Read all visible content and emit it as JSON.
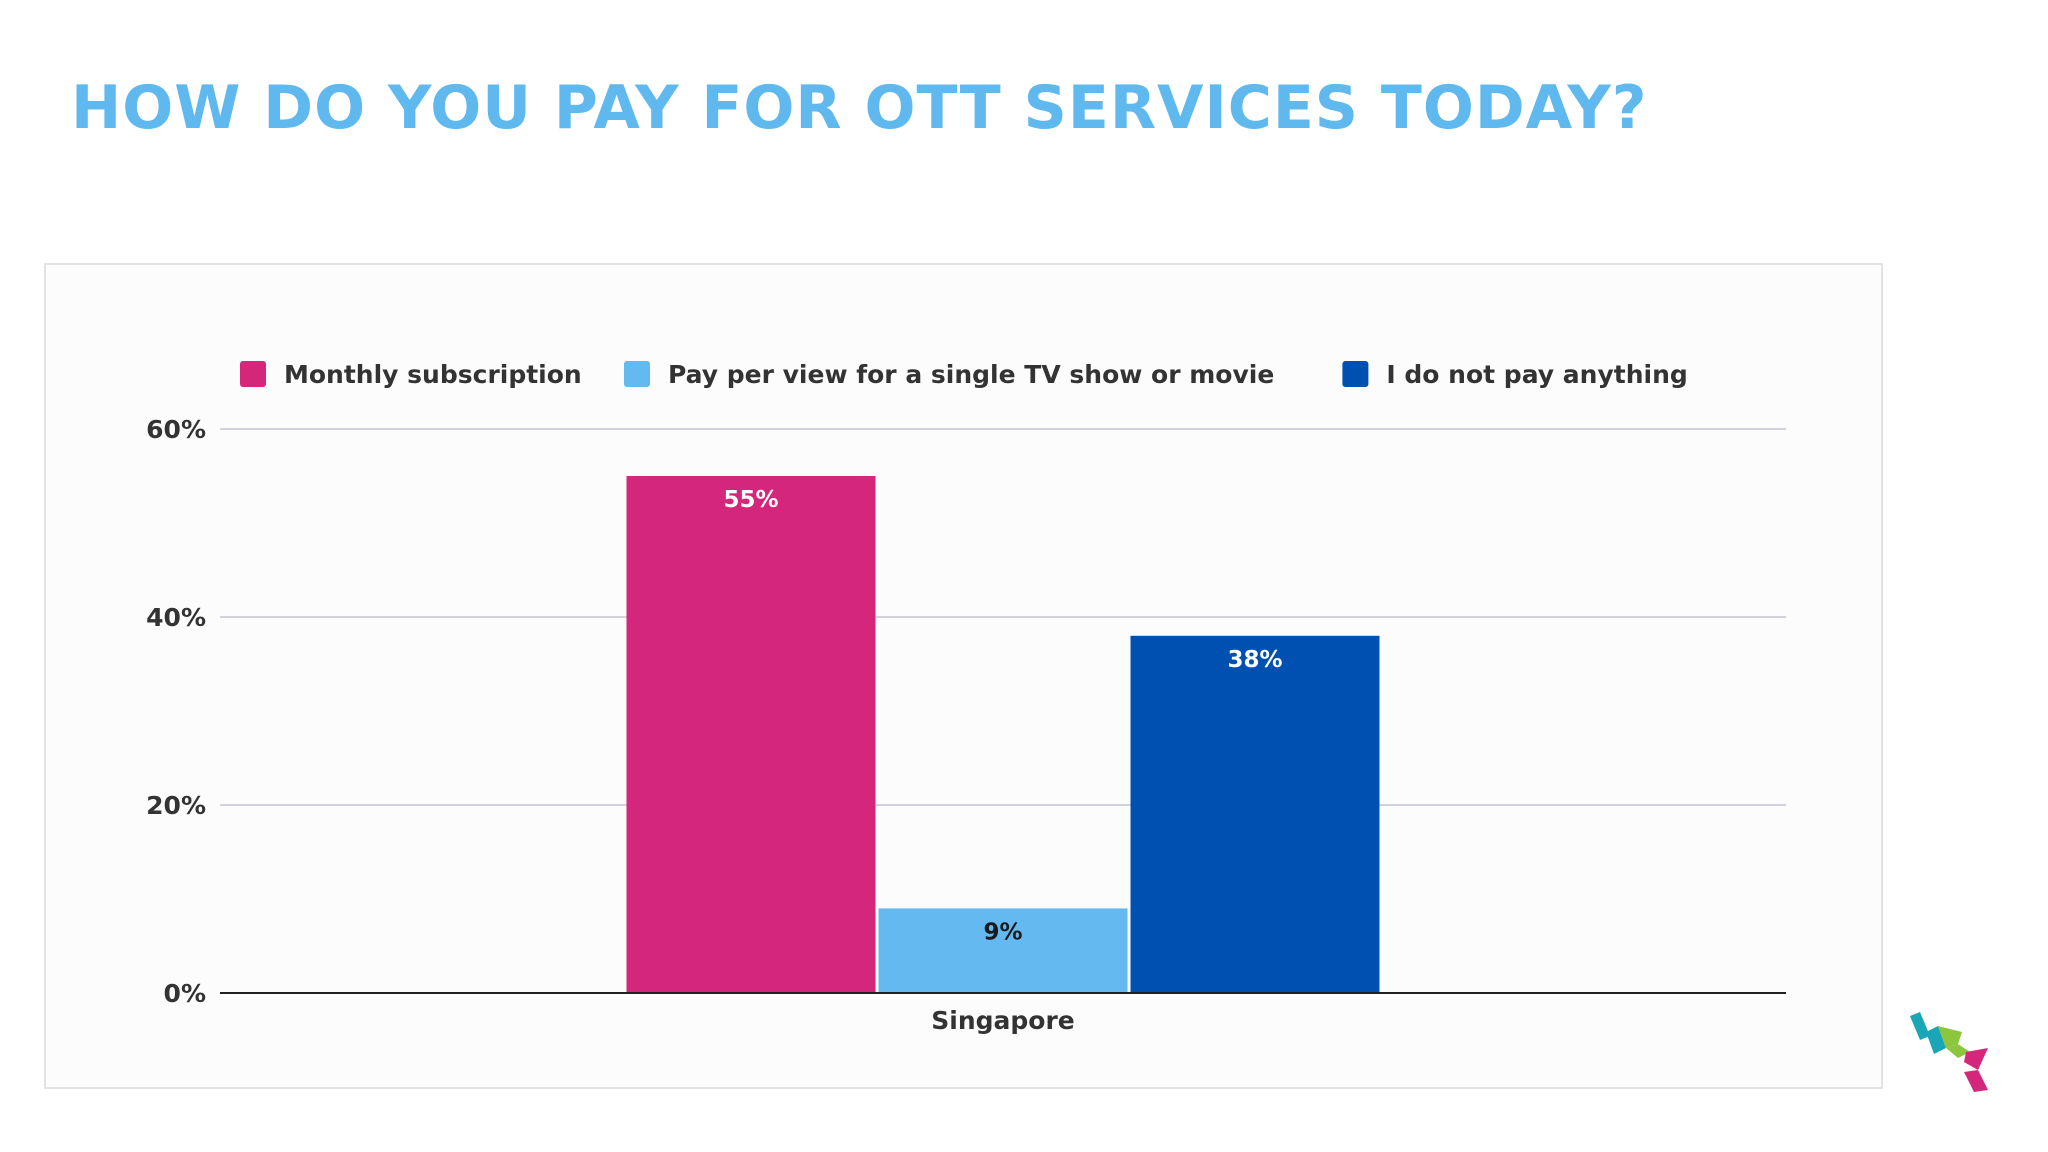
{
  "page": {
    "title": "HOW DO YOU PAY FOR OTT SERVICES TODAY?",
    "title_color": "#5fb8ee"
  },
  "chart_data": {
    "type": "bar",
    "categories": [
      "Singapore"
    ],
    "series": [
      {
        "name": "Monthly subscription",
        "values": [
          55
        ],
        "color": "#d4267a",
        "label_color": "#ffffff",
        "labels": [
          "55%"
        ]
      },
      {
        "name": "Pay per view for a single TV show or movie",
        "values": [
          9
        ],
        "color": "#63b9f0",
        "label_color": "#1a1a1a",
        "labels": [
          "9%"
        ]
      },
      {
        "name": "I do not pay anything",
        "values": [
          38
        ],
        "color": "#0050b2",
        "label_color": "#ffffff",
        "labels": [
          "38%"
        ]
      }
    ],
    "ylim": [
      0,
      60
    ],
    "yticks": [
      0,
      20,
      40,
      60
    ],
    "ytick_labels": [
      "0%",
      "20%",
      "40%",
      "60%"
    ],
    "legend_position": "top-left",
    "grid": true,
    "title": "",
    "xlabel": "",
    "ylabel": ""
  },
  "logo": {
    "name": "brand-logo-icon",
    "colors": [
      "#1aa6b7",
      "#8cc63f",
      "#d4267a"
    ]
  }
}
